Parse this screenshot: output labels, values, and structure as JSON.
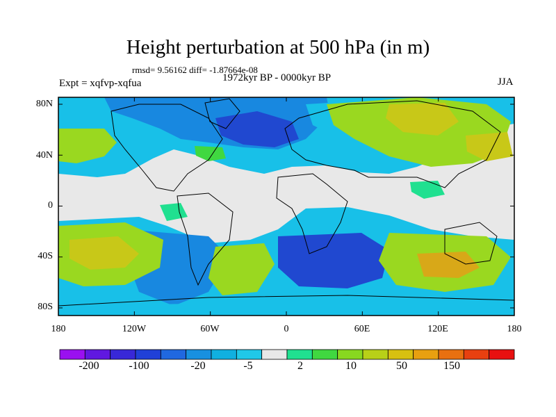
{
  "title": "Height perturbation at 500 hPa (in m)",
  "stats": "rmsd= 9.56162 diff= -1.87664e-08",
  "experiment": "Expt = xqfvp-xqfua",
  "period": "1972kyr BP - 0000kyr BP",
  "season": "JJA",
  "y_axis": {
    "labels": [
      "80N",
      "40N",
      "0",
      "40S",
      "80S"
    ]
  },
  "x_axis": {
    "labels": [
      "180",
      "120W",
      "60W",
      "0",
      "60E",
      "120E",
      "180"
    ]
  },
  "colorbar": {
    "labels": [
      "-200",
      "-100",
      "-20",
      "-5",
      "2",
      "10",
      "50",
      "150"
    ],
    "colors": [
      "#9a10f0",
      "#6018e0",
      "#3828d8",
      "#2040d8",
      "#2068e0",
      "#1890e0",
      "#10b0e0",
      "#20c8e8",
      "#e8e8e8",
      "#20e090",
      "#40d840",
      "#88d820",
      "#b8d018",
      "#d8c010",
      "#e8a010",
      "#e87010",
      "#e84010",
      "#e81010"
    ]
  },
  "field_colors": {
    "neutral": "#e8e8e8",
    "light_blue": "#18c0e8",
    "mid_blue": "#1888e0",
    "deep_blue": "#2048d0",
    "teal": "#20e090",
    "green": "#40d840",
    "yellow_green": "#9ad820",
    "yellow": "#c8c818",
    "orange": "#d8a818"
  }
}
